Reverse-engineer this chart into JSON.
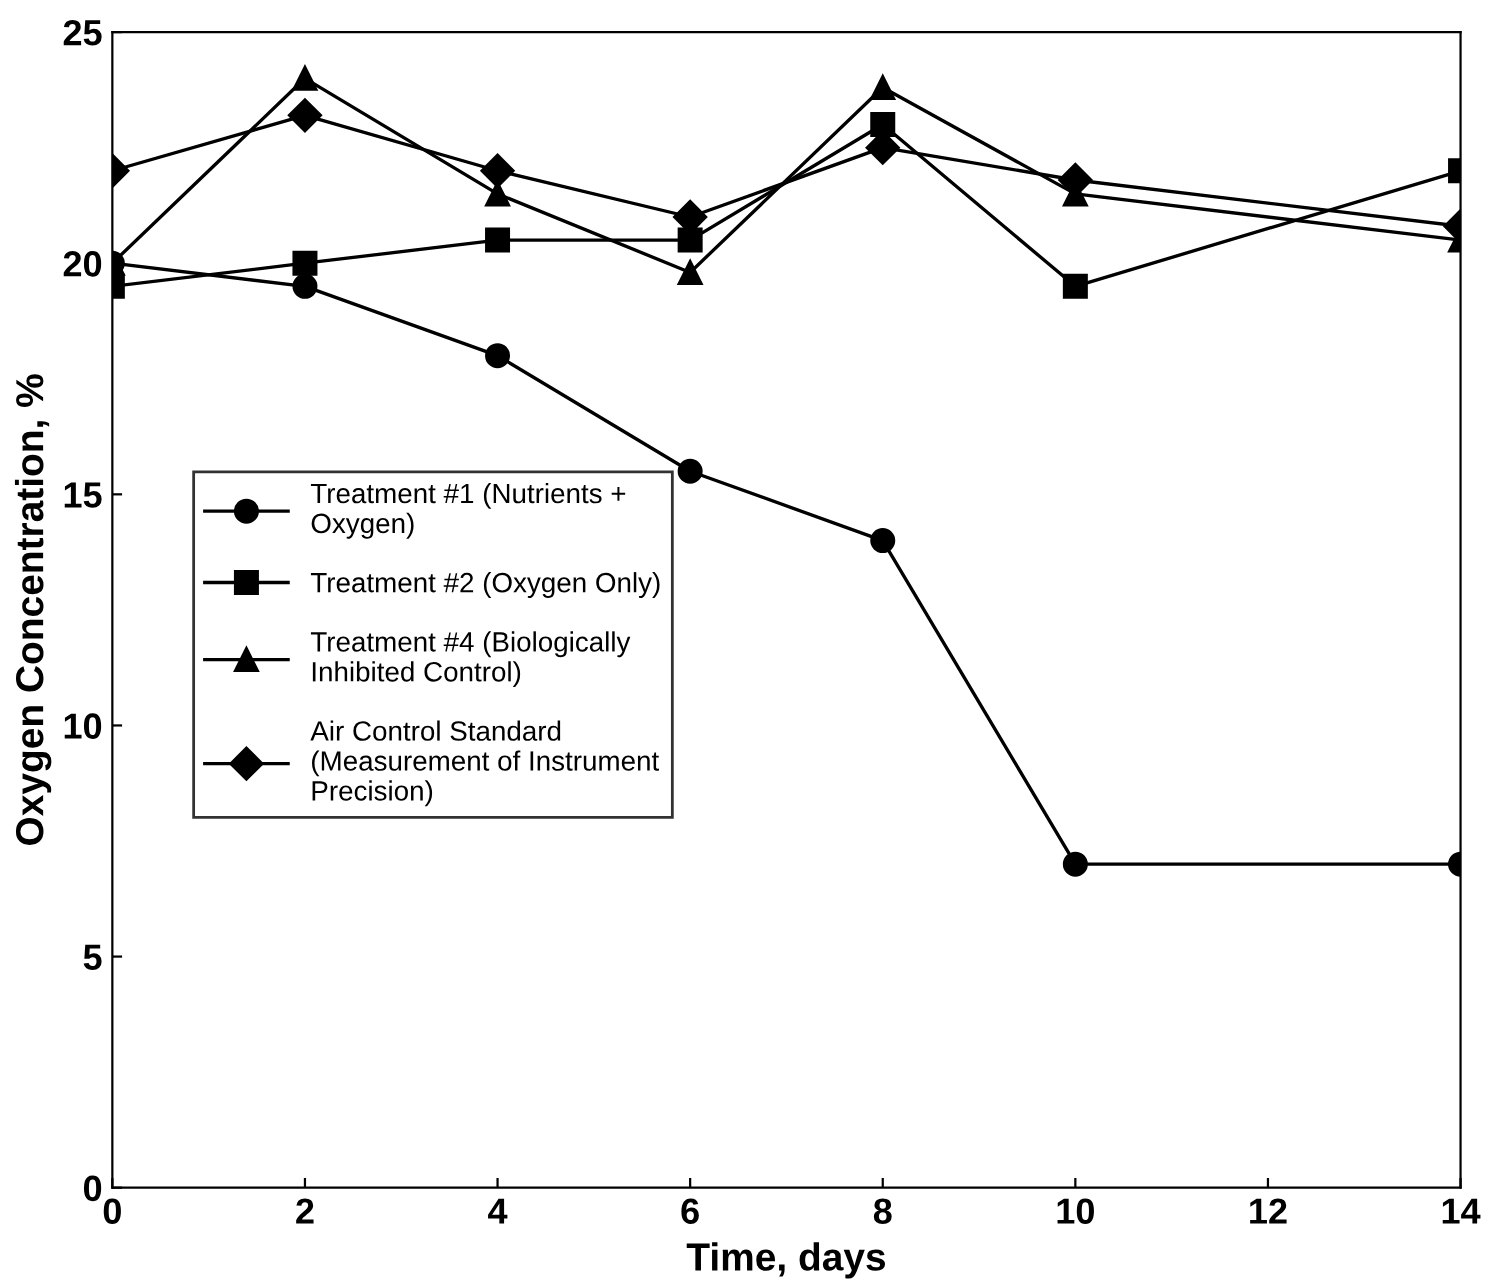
{
  "chart_data": {
    "type": "line",
    "xlabel": "Time, days",
    "ylabel": "Oxygen Concentration, %",
    "x": [
      0,
      2,
      4,
      6,
      8,
      10,
      14
    ],
    "series": [
      {
        "name": "Treatment #1 (Nutrients +\nOxygen)",
        "color": "#000000",
        "marker": "circle",
        "values": [
          20,
          19.5,
          18,
          15.5,
          14,
          7,
          7
        ]
      },
      {
        "name": "Treatment #2 (Oxygen Only)",
        "color": "#000000",
        "marker": "square",
        "values": [
          19.5,
          20,
          20.5,
          20.5,
          23,
          19.5,
          22
        ]
      },
      {
        "name": "Treatment #4 (Biologically\nInhibited Control)",
        "color": "#000000",
        "marker": "triangle",
        "values": [
          20,
          24,
          21.5,
          19.8,
          23.8,
          21.5,
          20.5
        ]
      },
      {
        "name": "Air Control Standard\n(Measurement of Instrument\nPrecision)",
        "color": "#000000",
        "marker": "diamond",
        "values": [
          22,
          23.2,
          22,
          21,
          22.5,
          21.8,
          20.8
        ]
      }
    ],
    "xlim": [
      0,
      14
    ],
    "xticks": [
      0,
      2,
      4,
      6,
      8,
      10,
      12,
      14
    ],
    "ylim": [
      0,
      25
    ],
    "yticks": [
      0,
      5,
      10,
      15,
      20,
      25
    ],
    "grid": false,
    "legend": "left",
    "line_style": "solid"
  }
}
